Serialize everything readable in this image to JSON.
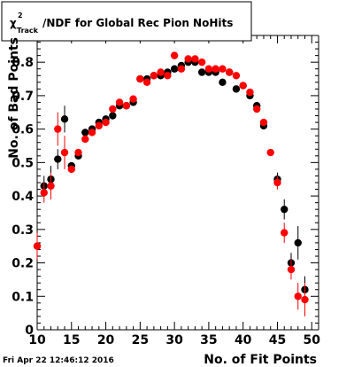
{
  "chart_data": {
    "type": "scatter",
    "title_symbol": "χ",
    "title_superscript": "2",
    "title_subscript": "Track",
    "title_suffix": "/NDF for Global Rec Pion NoHits",
    "xlabel": "No. of Fit Points",
    "ylabel": "No. of Bad Points",
    "timestamp": "Fri Apr 22 12:46:12 2016",
    "xlim": [
      10,
      51
    ],
    "ylim": [
      0,
      0.88
    ],
    "x_ticks": [
      10,
      15,
      20,
      25,
      30,
      35,
      40,
      45,
      50
    ],
    "y_ticks": [
      0,
      0.1,
      0.2,
      0.3,
      0.4,
      0.5,
      0.6,
      0.7,
      0.8
    ],
    "y_tick_labels": [
      "0",
      "0.1",
      "0.2",
      "0.3",
      "0.4",
      "0.5",
      "0.6",
      "0.7",
      "0.8"
    ],
    "series": [
      {
        "color": "#000000",
        "points": [
          [
            10,
            0.25,
            0.04
          ],
          [
            11,
            0.43,
            0.03
          ],
          [
            12,
            0.45,
            0.04
          ],
          [
            13,
            0.51,
            0.03
          ],
          [
            14,
            0.63,
            0.04
          ],
          [
            15,
            0.49,
            0.01
          ],
          [
            16,
            0.52,
            0.01
          ],
          [
            17,
            0.59,
            0.01
          ],
          [
            18,
            0.6,
            0.01
          ],
          [
            19,
            0.62,
            0.01
          ],
          [
            20,
            0.63,
            0.01
          ],
          [
            21,
            0.64,
            0.01
          ],
          [
            22,
            0.67,
            0.01
          ],
          [
            23,
            0.67,
            0.01
          ],
          [
            24,
            0.68,
            0.01
          ],
          [
            25,
            0.75,
            0.01
          ],
          [
            26,
            0.75,
            0.01
          ],
          [
            27,
            0.76,
            0.01
          ],
          [
            28,
            0.76,
            0.01
          ],
          [
            29,
            0.77,
            0.01
          ],
          [
            30,
            0.78,
            0.01
          ],
          [
            31,
            0.79,
            0.01
          ],
          [
            32,
            0.8,
            0.01
          ],
          [
            33,
            0.8,
            0.01
          ],
          [
            34,
            0.77,
            0.01
          ],
          [
            35,
            0.77,
            0.01
          ],
          [
            36,
            0.77,
            0.01
          ],
          [
            37,
            0.74,
            0.01
          ],
          [
            38,
            0.77,
            0.01
          ],
          [
            39,
            0.72,
            0.01
          ],
          [
            40,
            0.73,
            0.01
          ],
          [
            41,
            0.7,
            0.01
          ],
          [
            42,
            0.67,
            0.01
          ],
          [
            43,
            0.61,
            0.01
          ],
          [
            45,
            0.45,
            0.02
          ],
          [
            46,
            0.36,
            0.03
          ],
          [
            47,
            0.2,
            0.03
          ],
          [
            48,
            0.26,
            0.05
          ],
          [
            49,
            0.12,
            0.04
          ]
        ]
      },
      {
        "color": "#ff0000",
        "points": [
          [
            10,
            0.25,
            0.04
          ],
          [
            11,
            0.41,
            0.03
          ],
          [
            12,
            0.43,
            0.04
          ],
          [
            13,
            0.6,
            0.05
          ],
          [
            14,
            0.53,
            0.05
          ],
          [
            15,
            0.48,
            0.01
          ],
          [
            16,
            0.53,
            0.01
          ],
          [
            17,
            0.57,
            0.01
          ],
          [
            18,
            0.59,
            0.01
          ],
          [
            19,
            0.61,
            0.01
          ],
          [
            20,
            0.62,
            0.01
          ],
          [
            21,
            0.66,
            0.01
          ],
          [
            22,
            0.68,
            0.01
          ],
          [
            23,
            0.67,
            0.01
          ],
          [
            24,
            0.69,
            0.01
          ],
          [
            25,
            0.75,
            0.01
          ],
          [
            26,
            0.74,
            0.01
          ],
          [
            27,
            0.76,
            0.01
          ],
          [
            28,
            0.77,
            0.01
          ],
          [
            29,
            0.76,
            0.01
          ],
          [
            30,
            0.82,
            0.01
          ],
          [
            31,
            0.78,
            0.01
          ],
          [
            32,
            0.81,
            0.01
          ],
          [
            33,
            0.81,
            0.01
          ],
          [
            34,
            0.8,
            0.01
          ],
          [
            35,
            0.78,
            0.01
          ],
          [
            36,
            0.78,
            0.01
          ],
          [
            37,
            0.78,
            0.01
          ],
          [
            38,
            0.77,
            0.01
          ],
          [
            39,
            0.76,
            0.01
          ],
          [
            40,
            0.73,
            0.01
          ],
          [
            41,
            0.71,
            0.01
          ],
          [
            42,
            0.66,
            0.01
          ],
          [
            43,
            0.62,
            0.01
          ],
          [
            44,
            0.53,
            0.01
          ],
          [
            45,
            0.44,
            0.02
          ],
          [
            46,
            0.29,
            0.03
          ],
          [
            47,
            0.18,
            0.03
          ],
          [
            48,
            0.1,
            0.04
          ],
          [
            49,
            0.09,
            0.05
          ]
        ]
      }
    ],
    "grid": false,
    "legend": "none"
  }
}
